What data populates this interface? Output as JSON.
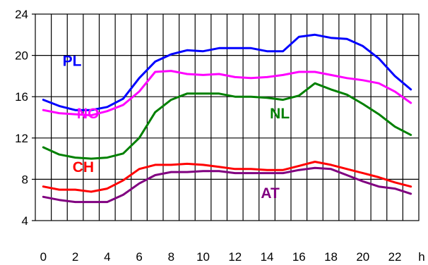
{
  "chart_data": {
    "type": "line",
    "x_unit_label": "h",
    "x": [
      0,
      1,
      2,
      3,
      4,
      5,
      6,
      7,
      8,
      9,
      10,
      11,
      12,
      13,
      14,
      15,
      16,
      17,
      18,
      19,
      20,
      21,
      22,
      23
    ],
    "x_ticks": [
      "0",
      "2",
      "4",
      "6",
      "8",
      "10",
      "12",
      "14",
      "16",
      "18",
      "20",
      "22"
    ],
    "xlim": [
      -0.5,
      23.5
    ],
    "ylim": [
      4,
      24
    ],
    "y_ticks": [
      "4",
      "8",
      "12",
      "16",
      "20",
      "24"
    ],
    "grid": true,
    "series": [
      {
        "name": "PL",
        "color": "#0000ff",
        "values": [
          15.7,
          15.1,
          14.7,
          14.7,
          15.0,
          15.8,
          17.8,
          19.4,
          20.1,
          20.5,
          20.4,
          20.7,
          20.7,
          20.7,
          20.4,
          20.4,
          21.8,
          22.0,
          21.7,
          21.6,
          20.9,
          19.7,
          18.0,
          16.7
        ]
      },
      {
        "name": "NO",
        "color": "#ff00ff",
        "values": [
          14.7,
          14.4,
          14.3,
          14.2,
          14.6,
          15.2,
          16.5,
          18.4,
          18.5,
          18.2,
          18.1,
          18.2,
          17.9,
          17.8,
          17.9,
          18.1,
          18.4,
          18.4,
          18.1,
          17.8,
          17.6,
          17.3,
          16.5,
          15.4
        ]
      },
      {
        "name": "NL",
        "color": "#008000",
        "values": [
          11.1,
          10.4,
          10.1,
          10.0,
          10.1,
          10.5,
          12.0,
          14.5,
          15.7,
          16.3,
          16.3,
          16.3,
          16.0,
          16.0,
          15.9,
          15.7,
          16.1,
          17.3,
          16.7,
          16.2,
          15.3,
          14.3,
          13.1,
          12.3
        ]
      },
      {
        "name": "CH",
        "color": "#ff0000",
        "values": [
          7.3,
          7.0,
          7.0,
          6.8,
          7.1,
          7.9,
          9.0,
          9.4,
          9.4,
          9.5,
          9.4,
          9.2,
          9.0,
          9.0,
          8.9,
          8.9,
          9.3,
          9.7,
          9.4,
          9.0,
          8.6,
          8.2,
          7.7,
          7.3
        ]
      },
      {
        "name": "AT",
        "color": "#800080",
        "values": [
          6.3,
          6.0,
          5.8,
          5.8,
          5.8,
          6.5,
          7.6,
          8.4,
          8.7,
          8.7,
          8.8,
          8.8,
          8.6,
          8.6,
          8.6,
          8.6,
          8.9,
          9.1,
          9.0,
          8.4,
          7.8,
          7.3,
          7.1,
          6.6
        ]
      }
    ],
    "label_positions": [
      "PL: near x=1.8, y=19",
      "NO: near x=2.8, y=13.9",
      "NL: near x=14.8, y=13.9",
      "CH: near x=2.5, y=8.7",
      "AT: near x=14.2, y=6.2"
    ]
  }
}
